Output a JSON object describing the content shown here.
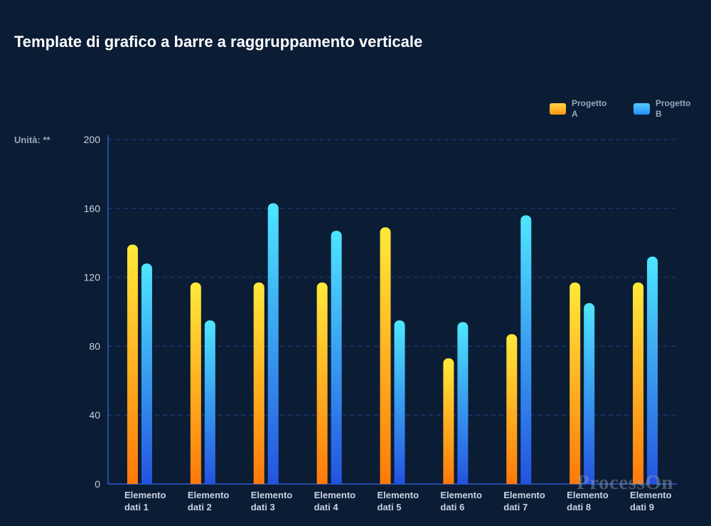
{
  "title": "Template di grafico a barre a raggruppamento verticale",
  "unit_label": "Unità: **",
  "watermark": "ProcessOn",
  "colors": {
    "background": "#0b1c35",
    "series_a_top": "#ffe93a",
    "series_a_bottom": "#ff7a0a",
    "series_b_top": "#4ee6ff",
    "series_b_bottom": "#2453e0",
    "axis": "#2a5fc9",
    "grid": "#1e3f86"
  },
  "legend": [
    {
      "label": "Progetto A",
      "line1": "Progetto",
      "line2": "A",
      "swatch": "#ffb020"
    },
    {
      "label": "Progetto B",
      "line1": "Progetto",
      "line2": "B",
      "swatch": "#39b6ff"
    }
  ],
  "chart_data": {
    "type": "bar",
    "title": "Template di grafico a barre a raggruppamento verticale",
    "ylabel": "Unità: **",
    "xlabel": "",
    "ylim": [
      0,
      200
    ],
    "yticks": [
      0,
      40,
      80,
      120,
      160,
      200
    ],
    "grid": true,
    "legend_position": "top-right",
    "categories": [
      [
        "Elemento",
        "dati 1"
      ],
      [
        "Elemento",
        "dati 2"
      ],
      [
        "Elemento",
        "dati 3"
      ],
      [
        "Elemento",
        "dati 4"
      ],
      [
        "Elemento",
        "dati 5"
      ],
      [
        "Elemento",
        "dati 6"
      ],
      [
        "Elemento",
        "dati 7"
      ],
      [
        "Elemento",
        "dati 8"
      ],
      [
        "Elemento",
        "dati 9"
      ]
    ],
    "series": [
      {
        "name": "Progetto A",
        "values": [
          139,
          117,
          117,
          117,
          149,
          73,
          87,
          117,
          117
        ]
      },
      {
        "name": "Progetto B",
        "values": [
          128,
          95,
          163,
          147,
          95,
          94,
          156,
          105,
          132
        ]
      }
    ]
  }
}
